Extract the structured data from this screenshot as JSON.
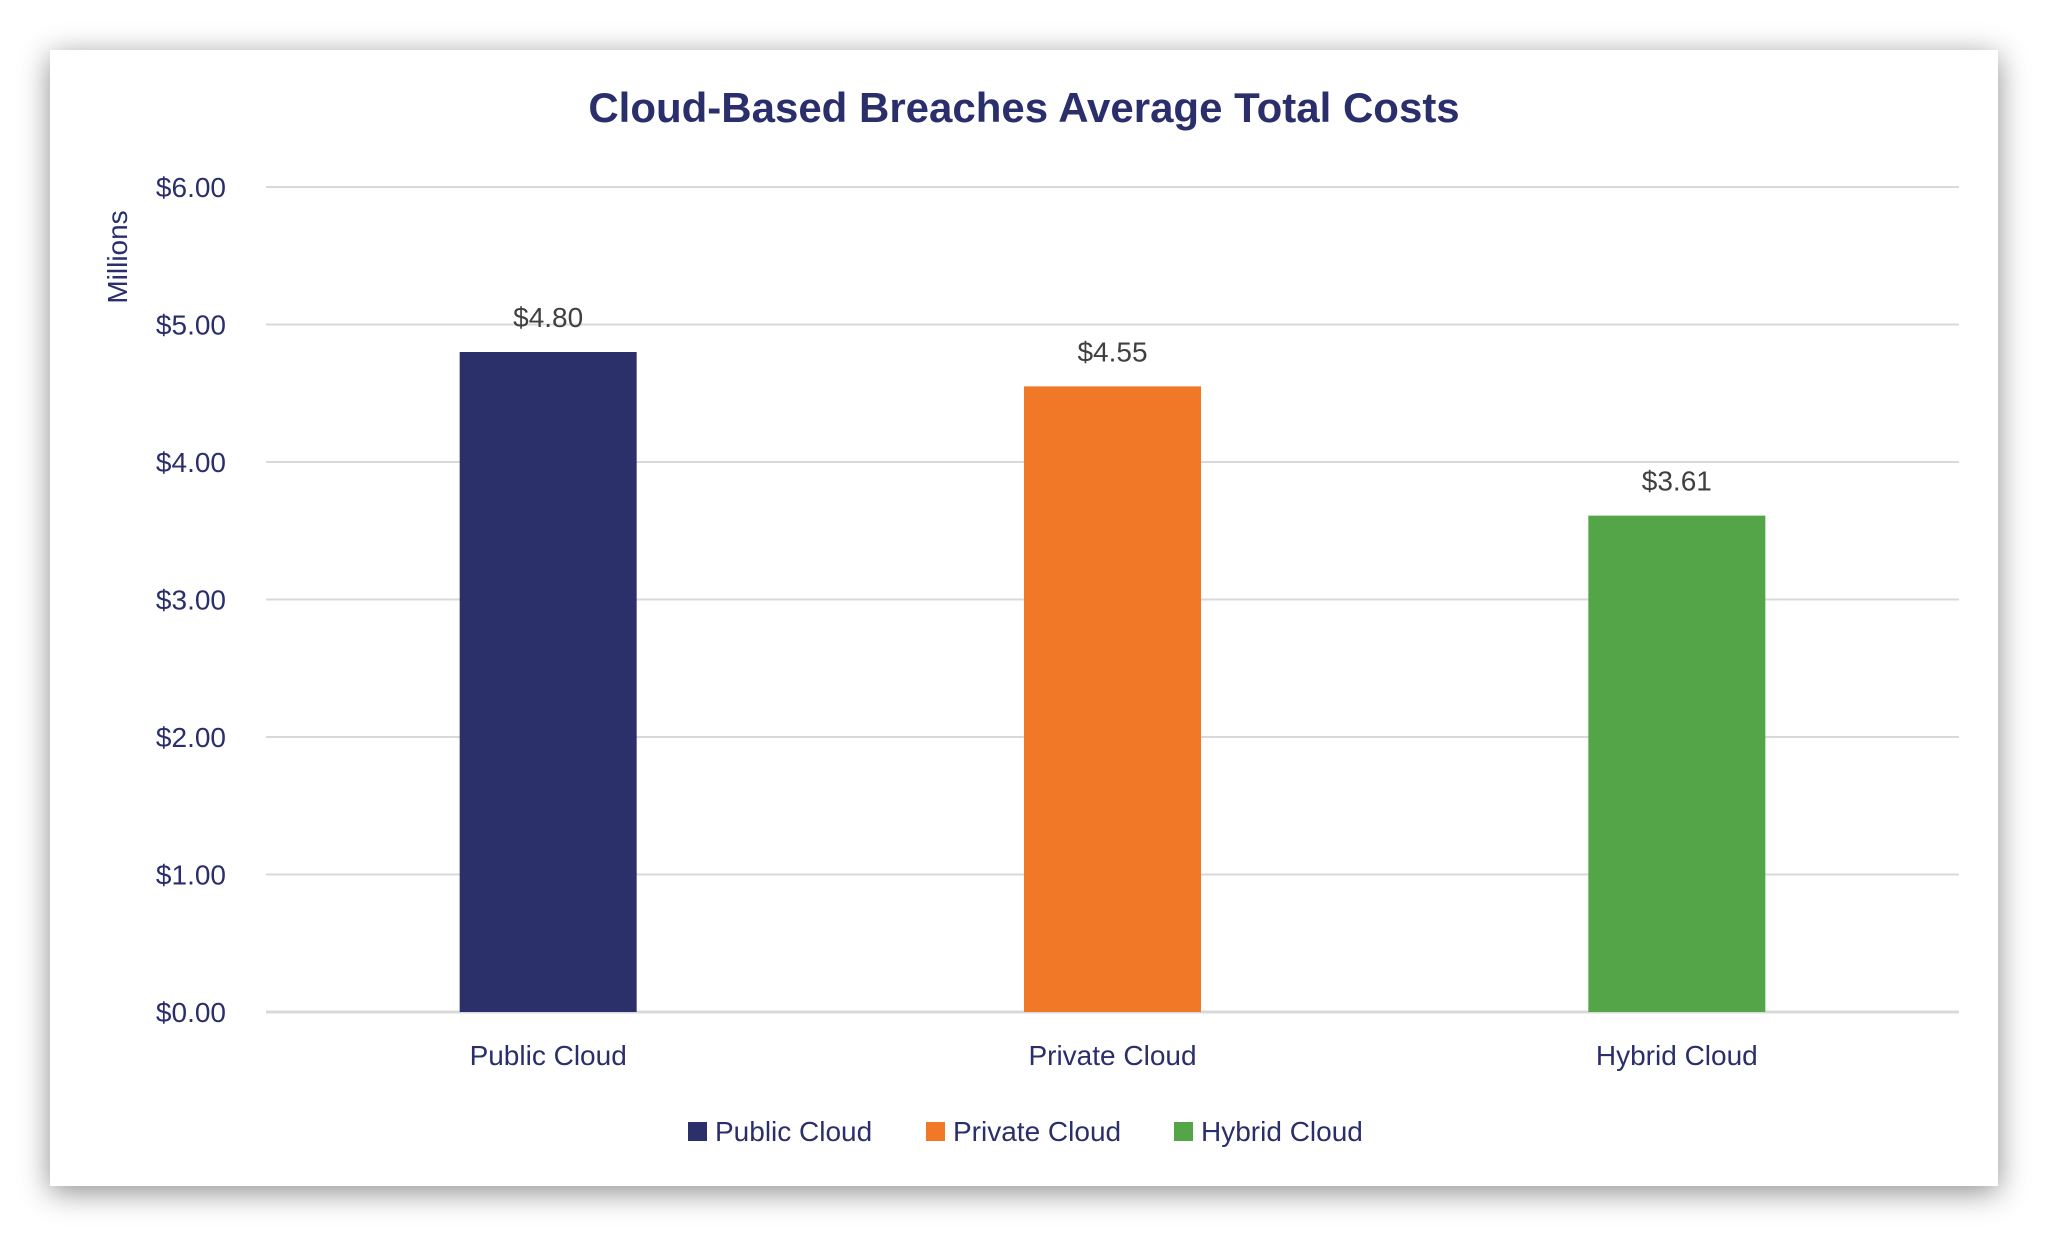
{
  "chart_data": {
    "type": "bar",
    "title": "Cloud-Based Breaches Average Total Costs",
    "ylabel": "Millions",
    "xlabel": "",
    "categories": [
      "Public Cloud",
      "Private Cloud",
      "Hybrid Cloud"
    ],
    "values": [
      4.8,
      4.55,
      3.61
    ],
    "data_labels": [
      "$4.80",
      "$4.55",
      "$3.61"
    ],
    "colors": [
      "#2b306b",
      "#f07827",
      "#53a548"
    ],
    "ylim": [
      0,
      6
    ],
    "yticks": [
      "$0.00",
      "$1.00",
      "$2.00",
      "$3.00",
      "$4.00",
      "$5.00",
      "$6.00"
    ],
    "grid": true,
    "legend": {
      "placement": "bottom",
      "entries": [
        "Public Cloud",
        "Private Cloud",
        "Hybrid Cloud"
      ]
    }
  }
}
